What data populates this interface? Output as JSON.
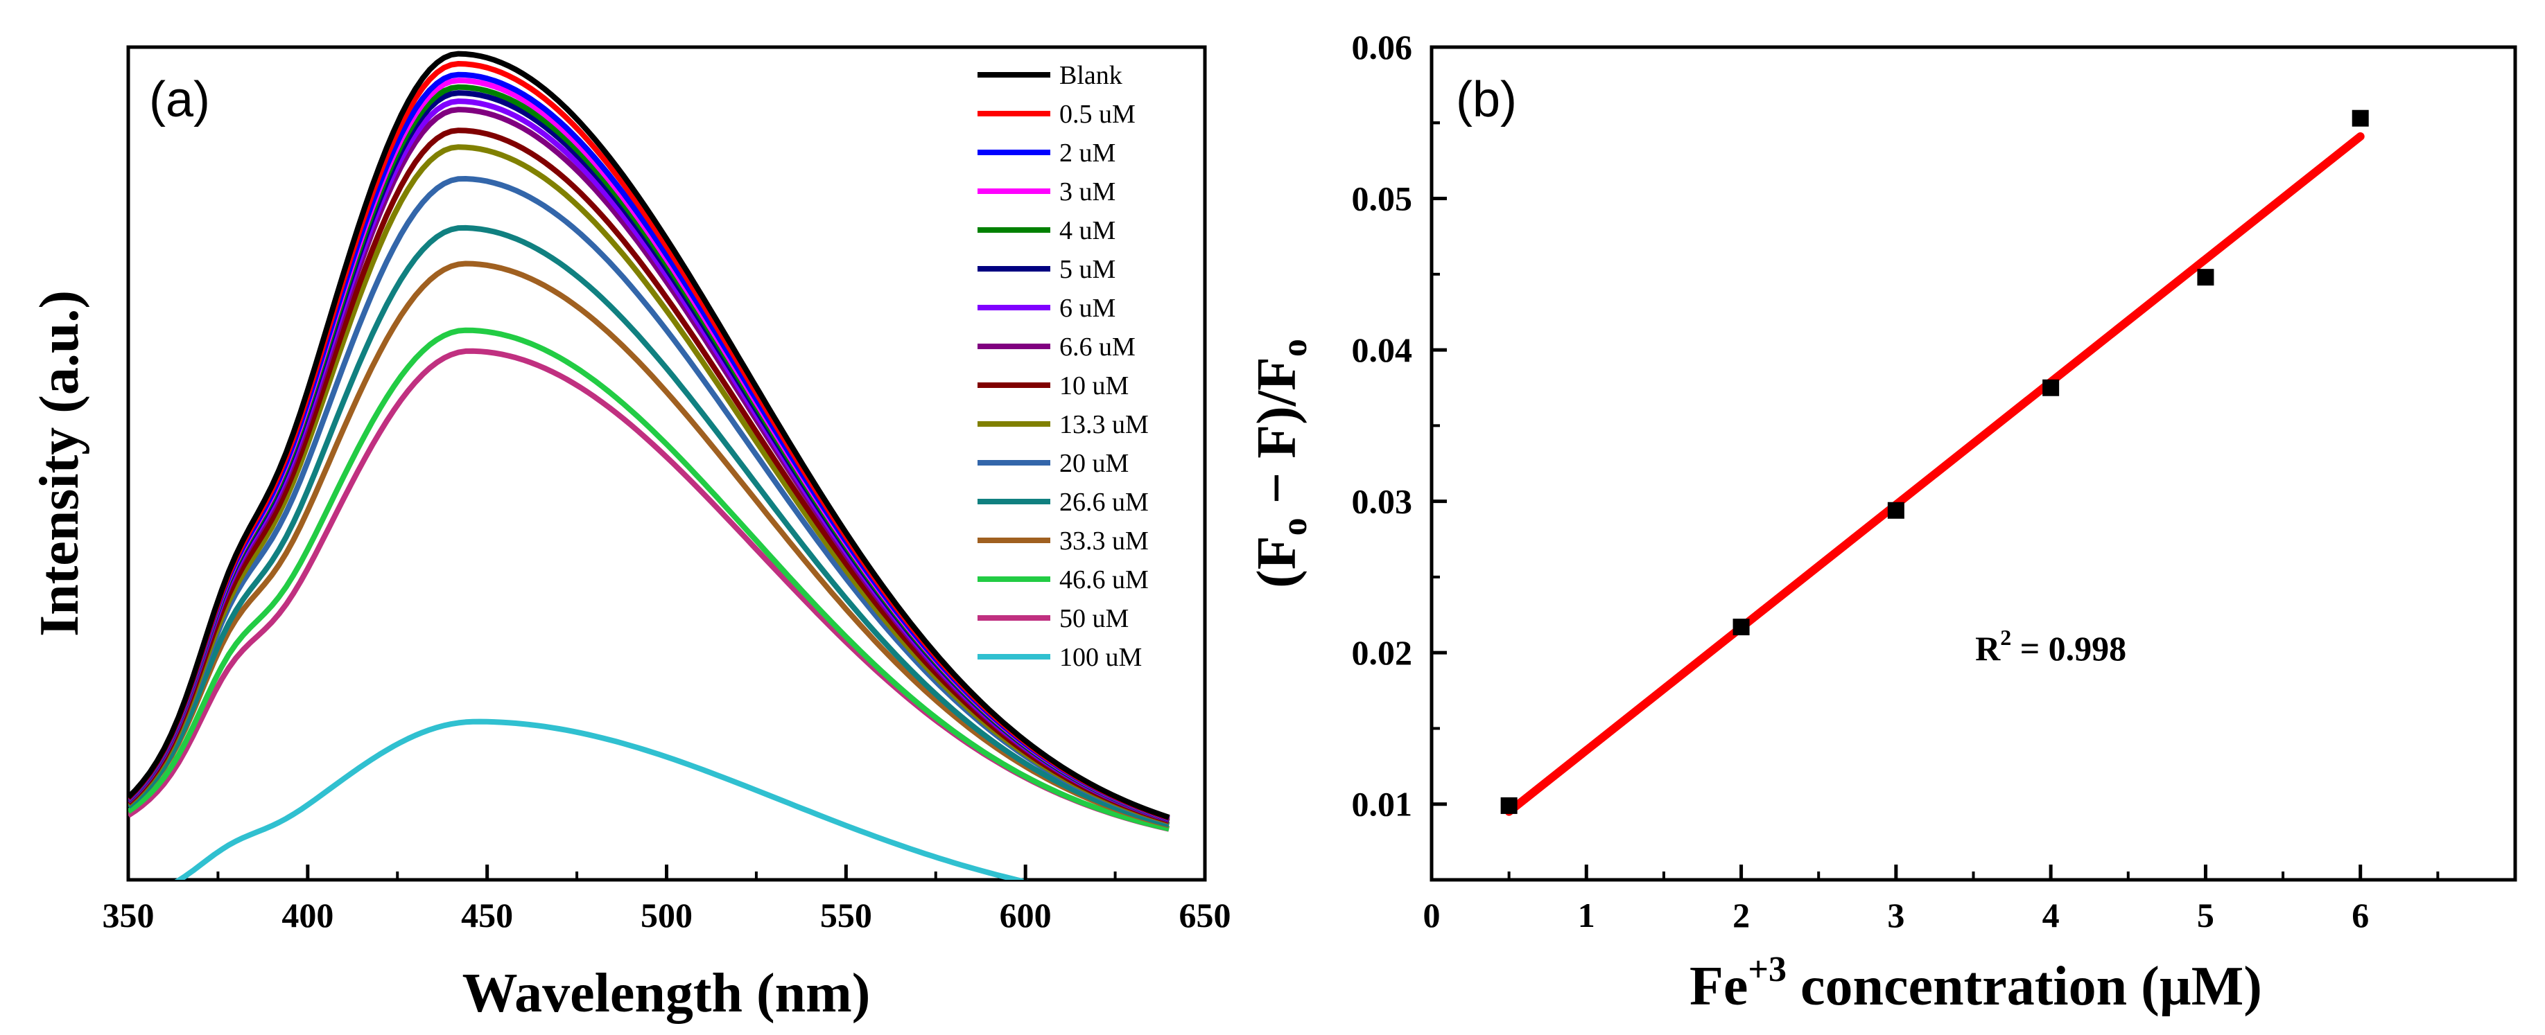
{
  "chart_data": [
    {
      "panel_label": "(a)",
      "type": "line",
      "title": "",
      "xlabel": "Wavelength (nm)",
      "ylabel": "Intensity (a.u.)",
      "xlim": [
        350,
        650
      ],
      "xticks": [
        350,
        400,
        450,
        500,
        550,
        600,
        650
      ],
      "ylim": [
        0,
        1.0
      ],
      "yticks": [],
      "legend_position": "top-right",
      "series": [
        {
          "name": "Blank",
          "color": "#000000",
          "peak": 0.962,
          "peak_x": 442,
          "shoulder": 0.33,
          "sigma_l": 40,
          "sigma_r": 80,
          "base": 0.03
        },
        {
          "name": "0.5 uM",
          "color": "#ff0000",
          "peak": 0.95,
          "peak_x": 442,
          "shoulder": 0.33,
          "sigma_l": 40,
          "sigma_r": 80,
          "base": 0.03
        },
        {
          "name": "2 uM",
          "color": "#0000ff",
          "peak": 0.937,
          "peak_x": 442,
          "shoulder": 0.33,
          "sigma_l": 40,
          "sigma_r": 80,
          "base": 0.03
        },
        {
          "name": "3 uM",
          "color": "#ff00ff",
          "peak": 0.93,
          "peak_x": 442,
          "shoulder": 0.33,
          "sigma_l": 40,
          "sigma_r": 80,
          "base": 0.03
        },
        {
          "name": "4 uM",
          "color": "#008000",
          "peak": 0.922,
          "peak_x": 442,
          "shoulder": 0.33,
          "sigma_l": 40,
          "sigma_r": 80,
          "base": 0.03
        },
        {
          "name": "5 uM",
          "color": "#000080",
          "peak": 0.915,
          "peak_x": 442,
          "shoulder": 0.33,
          "sigma_l": 40,
          "sigma_r": 80,
          "base": 0.03
        },
        {
          "name": "6 uM",
          "color": "#8000ff",
          "peak": 0.905,
          "peak_x": 442,
          "shoulder": 0.33,
          "sigma_l": 40,
          "sigma_r": 80,
          "base": 0.03
        },
        {
          "name": "6.6 uM",
          "color": "#800080",
          "peak": 0.895,
          "peak_x": 442,
          "shoulder": 0.33,
          "sigma_l": 40,
          "sigma_r": 80,
          "base": 0.03
        },
        {
          "name": "10 uM",
          "color": "#800000",
          "peak": 0.87,
          "peak_x": 442,
          "shoulder": 0.32,
          "sigma_l": 40,
          "sigma_r": 80,
          "base": 0.03
        },
        {
          "name": "13.3 uM",
          "color": "#808000",
          "peak": 0.85,
          "peak_x": 442,
          "shoulder": 0.31,
          "sigma_l": 40,
          "sigma_r": 80,
          "base": 0.03
        },
        {
          "name": "20 uM",
          "color": "#3366aa",
          "peak": 0.812,
          "peak_x": 443,
          "shoulder": 0.3,
          "sigma_l": 41,
          "sigma_r": 80,
          "base": 0.03
        },
        {
          "name": "26.6 uM",
          "color": "#108080",
          "peak": 0.753,
          "peak_x": 443,
          "shoulder": 0.29,
          "sigma_l": 41,
          "sigma_r": 80,
          "base": 0.03
        },
        {
          "name": "33.3 uM",
          "color": "#a06020",
          "peak": 0.71,
          "peak_x": 444,
          "shoulder": 0.28,
          "sigma_l": 42,
          "sigma_r": 80,
          "base": 0.03
        },
        {
          "name": "46.6 uM",
          "color": "#22cc44",
          "peak": 0.63,
          "peak_x": 444,
          "shoulder": 0.26,
          "sigma_l": 42,
          "sigma_r": 80,
          "base": 0.03
        },
        {
          "name": "50 uM",
          "color": "#c03080",
          "peak": 0.605,
          "peak_x": 445,
          "shoulder": 0.25,
          "sigma_l": 42,
          "sigma_r": 80,
          "base": 0.03
        },
        {
          "name": "100 uM",
          "color": "#30c0d0",
          "peak": 0.24,
          "peak_x": 447,
          "shoulder": 0.08,
          "sigma_l": 45,
          "sigma_r": 85,
          "base": -0.05
        }
      ]
    },
    {
      "panel_label": "(b)",
      "type": "scatter",
      "title": "",
      "xlabel": "Fe+3 concentration (µM)",
      "xlabel_parts": {
        "base": "Fe",
        "sup": "+3",
        "rest": " concentration (µM)"
      },
      "ylabel": "(Fo − F)/Fo",
      "ylabel_parts": {
        "open": "(F",
        "sub1": "o",
        "mid": " − F)/F",
        "sub2": "o"
      },
      "xlim": [
        0,
        7
      ],
      "xticks": [
        0,
        1,
        2,
        3,
        4,
        5,
        6
      ],
      "ylim": [
        0.005,
        0.06
      ],
      "yticks": [
        0.01,
        0.02,
        0.03,
        0.04,
        0.05,
        0.06
      ],
      "ytick_labels": [
        "0.01",
        "0.02",
        "0.03",
        "0.04",
        "0.05",
        "0.06"
      ],
      "points": {
        "x": [
          0.5,
          2,
          3,
          4,
          5,
          6
        ],
        "y": [
          0.0099,
          0.0217,
          0.0294,
          0.0375,
          0.0448,
          0.0553
        ]
      },
      "fit": {
        "x": [
          0.5,
          6
        ],
        "y": [
          0.0095,
          0.0541
        ],
        "color": "#ff0000"
      },
      "annotation": {
        "text_main": "R",
        "text_sup": "2",
        "text_rest": " = 0.998",
        "x": 4.0,
        "y": 0.0195
      }
    }
  ]
}
